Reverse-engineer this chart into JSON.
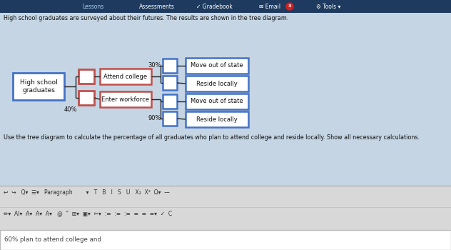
{
  "bg_color": "#c5d5e4",
  "nav_bg": "#1e3a5f",
  "nav_text_color": "#ffffff",
  "description": "High school graduates are surveyed about their futures. The results are shown in the tree diagram.",
  "question": "Use the tree diagram to calculate the percentage of all graduates who plan to attend college and reside locally. Show all necessary calculations.",
  "answer_text": "60% plan to attend college and",
  "tree": {
    "root_label": "High school\ngraduates",
    "root_box_color": "#4472c4",
    "orange_box_color": "#c0504d",
    "branch1_label": "Attend college",
    "branch2_label": "Enter workforce",
    "branch2_pct": "40%",
    "leaf1_label": "Move out of state",
    "leaf1_pct": "30%",
    "leaf2_label": "Reside locally",
    "leaf3_label": "Move out of state",
    "leaf4_label": "Reside locally",
    "leaf4_pct": "90%",
    "blue_box_color": "#4472c4",
    "line_color": "#222222"
  },
  "toolbar_bg": "#d8d8d8",
  "toolbar_row1": "↩  ↪   Q▾  ☰▾   Paragraph       ▾   T  B  I  S  U  X₂  X²  Ω▾  —",
  "toolbar_row2": "✏▾  AI▾  A▾  A▾  A▾   @  \"  ⊞▾  ▣▾  ✂▾  ≡  ≡  ≡  ≡  ≡  ≡▾  ✓  C",
  "answer_border": "#bbbbbb"
}
